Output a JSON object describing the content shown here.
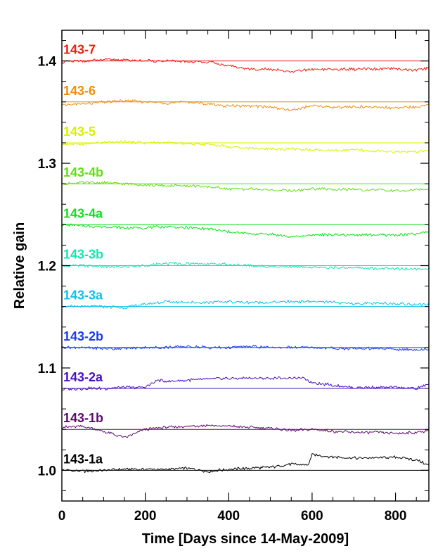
{
  "chart_data": {
    "type": "line",
    "title": "",
    "xlabel": "Time [Days since 14-May-2009]",
    "ylabel": "Relative gain",
    "xlim": [
      0,
      880
    ],
    "ylim": [
      0.97,
      1.43
    ],
    "x_ticks": [
      0,
      200,
      400,
      600,
      800
    ],
    "y_ticks": [
      1.0,
      1.1,
      1.2,
      1.3,
      1.4
    ],
    "x_tick_labels": [
      "0",
      "200",
      "400",
      "600",
      "800"
    ],
    "y_tick_labels": [
      "1.0",
      "1.1",
      "1.2",
      "1.3",
      "1.4"
    ],
    "legend": "series labels printed at top-left of each trace",
    "series": [
      {
        "name": "143-1a",
        "color": "#000000",
        "reference": 1.0,
        "x": [
          0,
          50,
          100,
          150,
          200,
          250,
          300,
          350,
          400,
          450,
          500,
          550,
          590,
          600,
          650,
          700,
          750,
          800,
          850,
          880
        ],
        "y": [
          1.0,
          0.999,
          1.0,
          1.001,
          1.001,
          1.001,
          1.002,
          0.999,
          1.001,
          1.002,
          1.003,
          1.006,
          1.005,
          1.015,
          1.013,
          1.012,
          1.012,
          1.013,
          1.01,
          1.005
        ]
      },
      {
        "name": "143-1b",
        "color": "#5a0a6e",
        "reference": 1.04,
        "x": [
          0,
          50,
          100,
          150,
          200,
          250,
          300,
          350,
          400,
          450,
          500,
          550,
          600,
          650,
          700,
          750,
          800,
          850,
          880
        ],
        "y": [
          1.042,
          1.043,
          1.038,
          1.032,
          1.04,
          1.042,
          1.043,
          1.044,
          1.043,
          1.042,
          1.041,
          1.039,
          1.04,
          1.038,
          1.037,
          1.037,
          1.036,
          1.037,
          1.039
        ]
      },
      {
        "name": "143-2a",
        "color": "#4a10c0",
        "reference": 1.08,
        "x": [
          0,
          50,
          100,
          150,
          200,
          230,
          250,
          300,
          350,
          400,
          450,
          500,
          550,
          580,
          600,
          650,
          700,
          750,
          800,
          850,
          880
        ],
        "y": [
          1.079,
          1.08,
          1.08,
          1.081,
          1.081,
          1.088,
          1.087,
          1.088,
          1.089,
          1.09,
          1.09,
          1.09,
          1.09,
          1.09,
          1.086,
          1.083,
          1.081,
          1.081,
          1.081,
          1.08,
          1.084
        ]
      },
      {
        "name": "143-2b",
        "color": "#1a3cf0",
        "reference": 1.12,
        "x": [
          0,
          50,
          100,
          150,
          200,
          250,
          300,
          350,
          400,
          450,
          500,
          550,
          600,
          650,
          700,
          750,
          800,
          850,
          880
        ],
        "y": [
          1.12,
          1.12,
          1.119,
          1.119,
          1.12,
          1.12,
          1.121,
          1.12,
          1.12,
          1.121,
          1.12,
          1.12,
          1.12,
          1.119,
          1.119,
          1.119,
          1.118,
          1.118,
          1.118
        ]
      },
      {
        "name": "143-3a",
        "color": "#10c0e8",
        "reference": 1.16,
        "x": [
          0,
          50,
          100,
          150,
          200,
          250,
          300,
          350,
          400,
          450,
          500,
          550,
          600,
          650,
          700,
          750,
          800,
          850,
          880
        ],
        "y": [
          1.16,
          1.16,
          1.16,
          1.159,
          1.162,
          1.165,
          1.164,
          1.164,
          1.165,
          1.164,
          1.164,
          1.165,
          1.165,
          1.164,
          1.163,
          1.163,
          1.163,
          1.162,
          1.162
        ]
      },
      {
        "name": "143-3b",
        "color": "#10e8b0",
        "reference": 1.2,
        "x": [
          0,
          50,
          100,
          150,
          200,
          250,
          300,
          350,
          400,
          450,
          500,
          550,
          600,
          650,
          700,
          750,
          800,
          850,
          880
        ],
        "y": [
          1.2,
          1.2,
          1.199,
          1.199,
          1.2,
          1.202,
          1.202,
          1.202,
          1.201,
          1.2,
          1.199,
          1.199,
          1.198,
          1.198,
          1.198,
          1.197,
          1.197,
          1.197,
          1.197
        ]
      },
      {
        "name": "143-4a",
        "color": "#10e020",
        "reference": 1.24,
        "x": [
          0,
          50,
          100,
          150,
          200,
          250,
          300,
          350,
          400,
          450,
          500,
          550,
          600,
          650,
          700,
          750,
          800,
          850,
          880
        ],
        "y": [
          1.24,
          1.239,
          1.238,
          1.237,
          1.237,
          1.238,
          1.237,
          1.236,
          1.233,
          1.231,
          1.231,
          1.228,
          1.23,
          1.23,
          1.23,
          1.23,
          1.23,
          1.231,
          1.233
        ]
      },
      {
        "name": "143-4b",
        "color": "#60e010",
        "reference": 1.28,
        "x": [
          0,
          50,
          100,
          150,
          200,
          250,
          300,
          350,
          400,
          450,
          500,
          550,
          600,
          650,
          700,
          750,
          800,
          850,
          880
        ],
        "y": [
          1.28,
          1.281,
          1.281,
          1.28,
          1.279,
          1.278,
          1.278,
          1.277,
          1.275,
          1.275,
          1.274,
          1.273,
          1.275,
          1.275,
          1.274,
          1.274,
          1.273,
          1.274,
          1.275
        ]
      },
      {
        "name": "143-5",
        "color": "#d8f000",
        "reference": 1.32,
        "x": [
          0,
          50,
          100,
          150,
          200,
          250,
          300,
          350,
          400,
          450,
          500,
          550,
          600,
          650,
          700,
          750,
          800,
          850,
          880
        ],
        "y": [
          1.319,
          1.319,
          1.32,
          1.321,
          1.32,
          1.32,
          1.319,
          1.319,
          1.316,
          1.315,
          1.314,
          1.314,
          1.313,
          1.312,
          1.313,
          1.312,
          1.311,
          1.311,
          1.313
        ]
      },
      {
        "name": "143-6",
        "color": "#f08c10",
        "reference": 1.36,
        "x": [
          0,
          50,
          100,
          150,
          200,
          250,
          300,
          350,
          400,
          450,
          500,
          550,
          600,
          650,
          700,
          750,
          800,
          850,
          880
        ],
        "y": [
          1.357,
          1.358,
          1.36,
          1.361,
          1.36,
          1.359,
          1.36,
          1.358,
          1.356,
          1.356,
          1.355,
          1.352,
          1.356,
          1.355,
          1.355,
          1.355,
          1.354,
          1.355,
          1.358
        ]
      },
      {
        "name": "143-7",
        "color": "#f01c10",
        "reference": 1.4,
        "x": [
          0,
          50,
          100,
          150,
          200,
          250,
          300,
          350,
          400,
          450,
          500,
          550,
          600,
          650,
          700,
          750,
          800,
          850,
          880
        ],
        "y": [
          1.399,
          1.4,
          1.401,
          1.401,
          1.4,
          1.4,
          1.399,
          1.399,
          1.395,
          1.392,
          1.392,
          1.389,
          1.392,
          1.392,
          1.392,
          1.392,
          1.392,
          1.391,
          1.393
        ]
      }
    ]
  }
}
